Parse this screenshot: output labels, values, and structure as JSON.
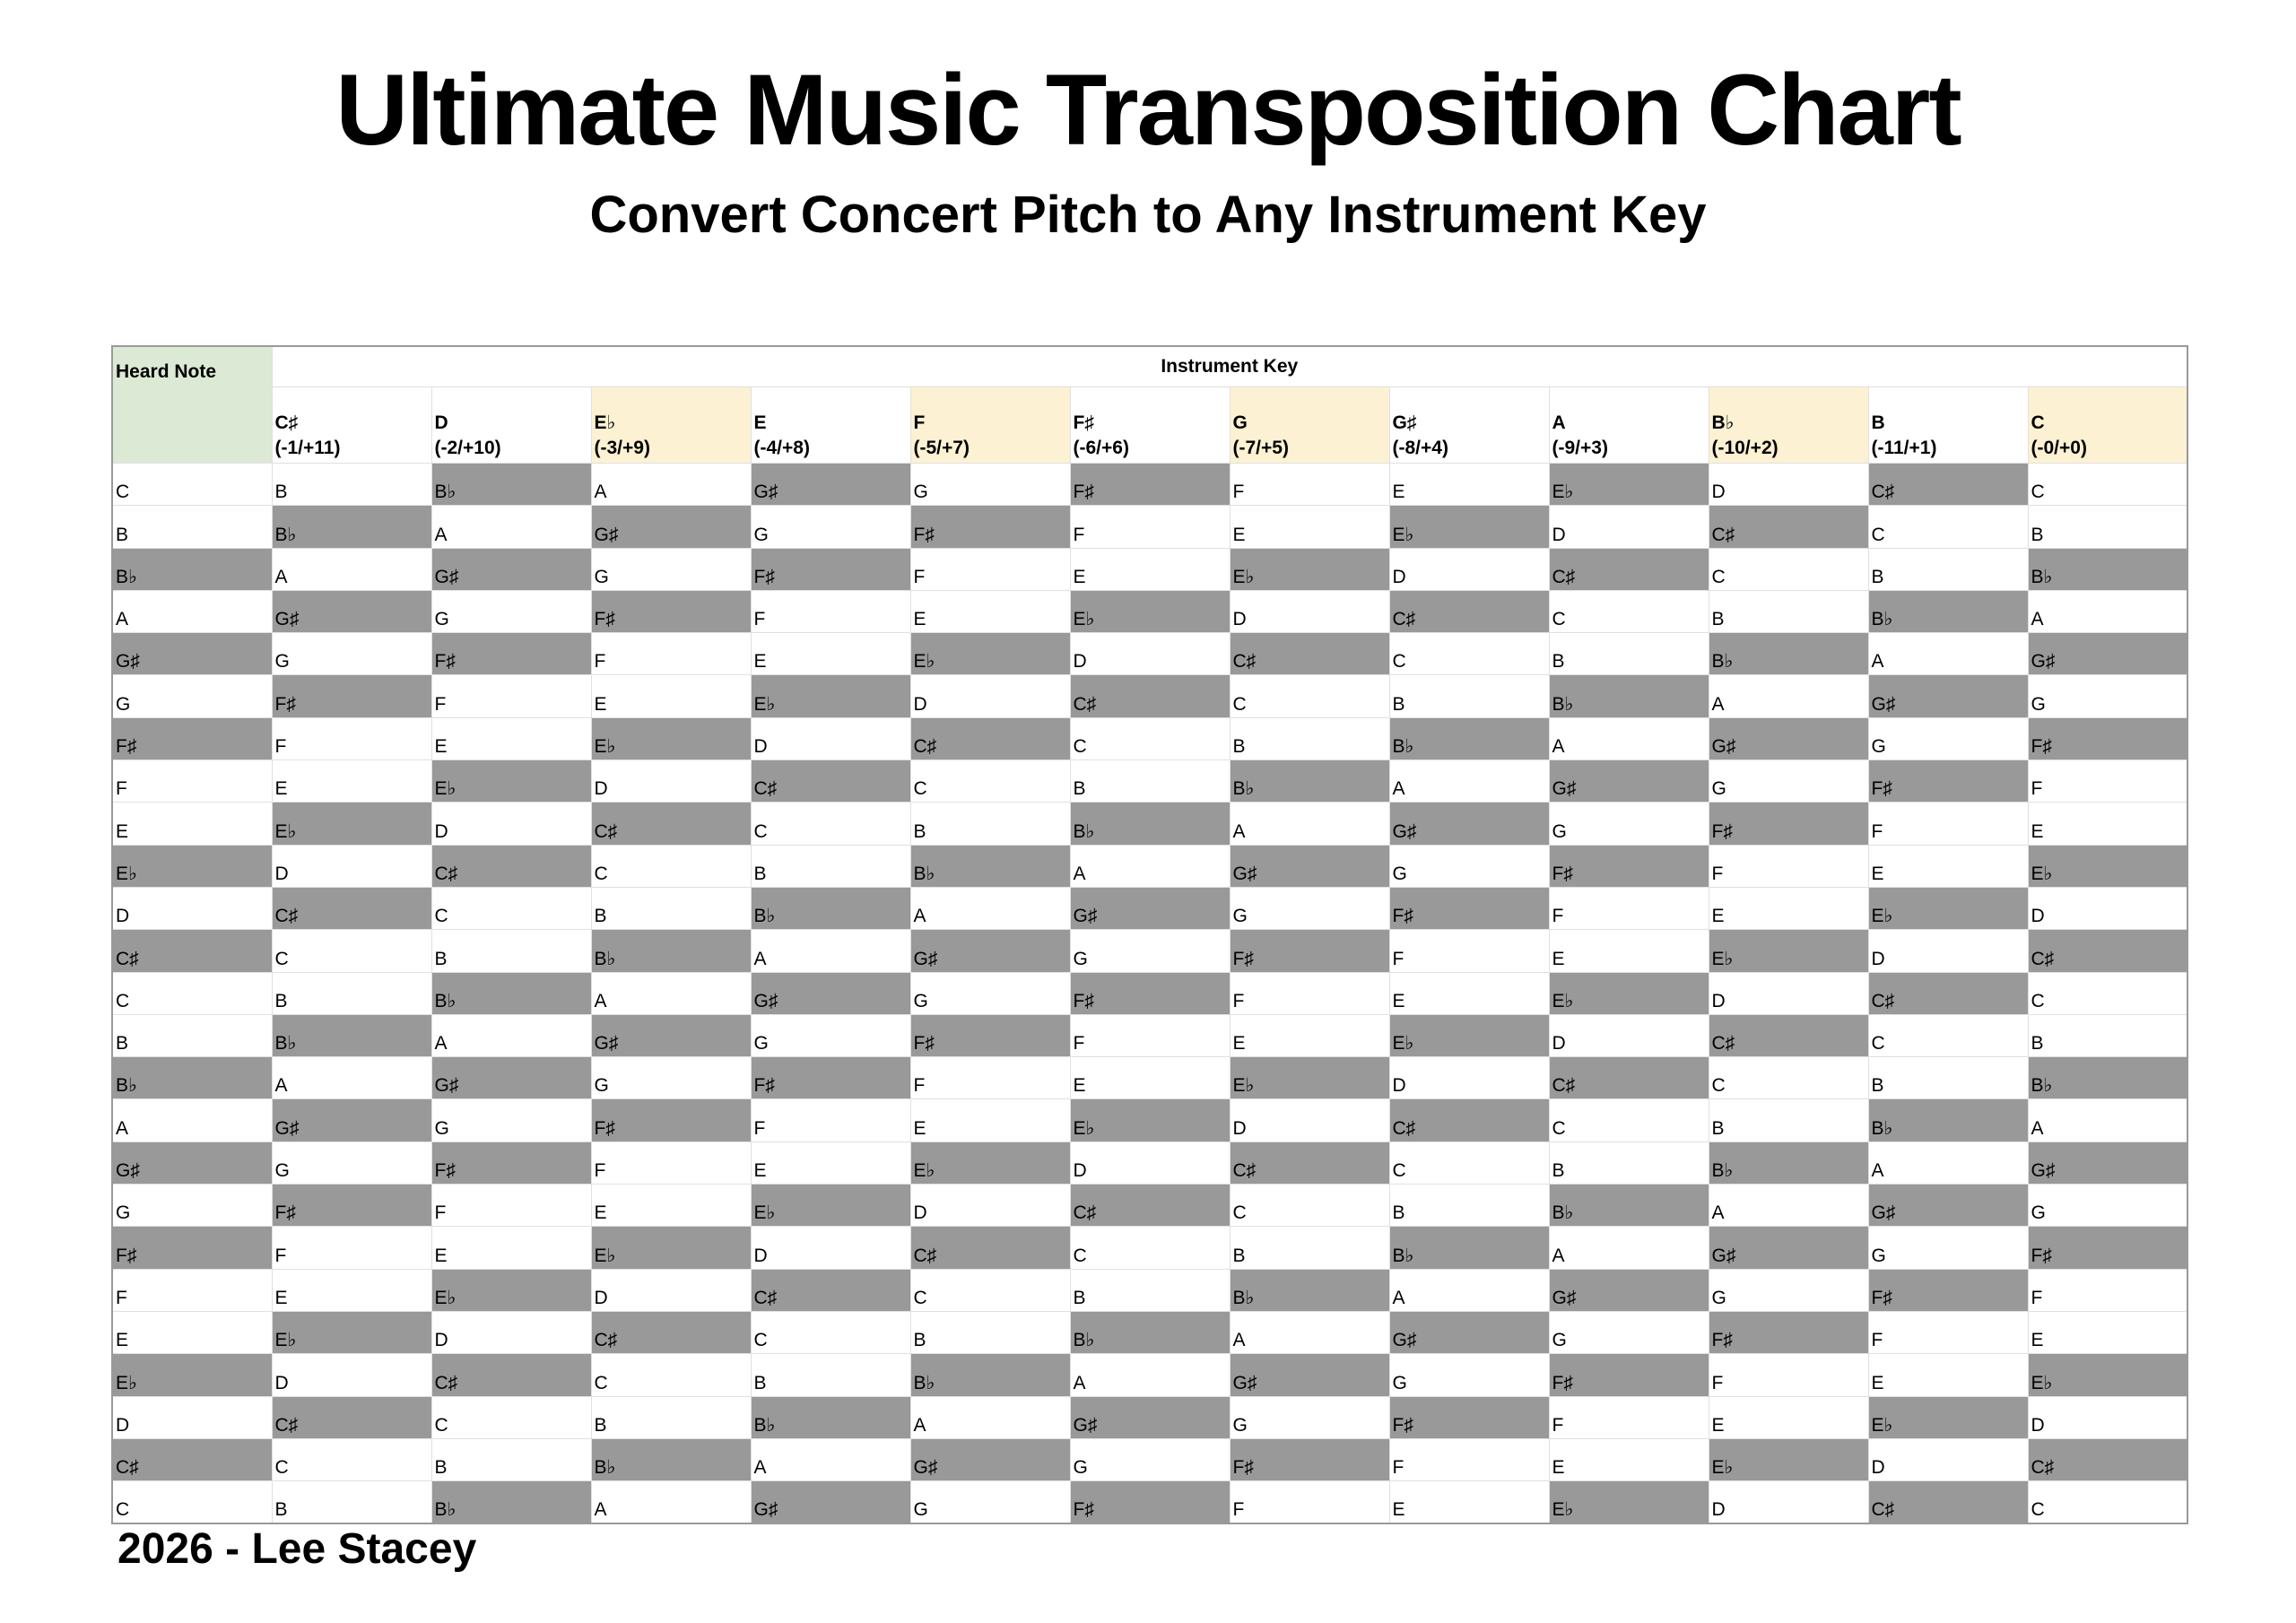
{
  "header": {
    "title": "Ultimate Music Transposition Chart",
    "subtitle": "Convert Concert Pitch to Any Instrument Key"
  },
  "table": {
    "corner": "Heard Note",
    "group": "Instrument Key",
    "columns": [
      {
        "key": "C♯",
        "interval": "(-1/+11)"
      },
      {
        "key": "D",
        "interval": "(-2/+10)"
      },
      {
        "key": "E♭",
        "interval": "(-3/+9)"
      },
      {
        "key": "E",
        "interval": "(-4/+8)"
      },
      {
        "key": "F",
        "interval": "(-5/+7)"
      },
      {
        "key": "F♯",
        "interval": "(-6/+6)"
      },
      {
        "key": "G",
        "interval": "(-7/+5)"
      },
      {
        "key": "G♯",
        "interval": "(-8/+4)"
      },
      {
        "key": "A",
        "interval": "(-9/+3)"
      },
      {
        "key": "B♭",
        "interval": "(-10/+2)"
      },
      {
        "key": "B",
        "interval": "(-11/+1)"
      },
      {
        "key": "C",
        "interval": "(-0/+0)"
      }
    ],
    "rows": [
      [
        "C",
        "B",
        "B♭",
        "A",
        "G♯",
        "G",
        "F♯",
        "F",
        "E",
        "E♭",
        "D",
        "C♯",
        "C"
      ],
      [
        "B",
        "B♭",
        "A",
        "G♯",
        "G",
        "F♯",
        "F",
        "E",
        "E♭",
        "D",
        "C♯",
        "C",
        "B"
      ],
      [
        "B♭",
        "A",
        "G♯",
        "G",
        "F♯",
        "F",
        "E",
        "E♭",
        "D",
        "C♯",
        "C",
        "B",
        "B♭"
      ],
      [
        "A",
        "G♯",
        "G",
        "F♯",
        "F",
        "E",
        "E♭",
        "D",
        "C♯",
        "C",
        "B",
        "B♭",
        "A"
      ],
      [
        "G♯",
        "G",
        "F♯",
        "F",
        "E",
        "E♭",
        "D",
        "C♯",
        "C",
        "B",
        "B♭",
        "A",
        "G♯"
      ],
      [
        "G",
        "F♯",
        "F",
        "E",
        "E♭",
        "D",
        "C♯",
        "C",
        "B",
        "B♭",
        "A",
        "G♯",
        "G"
      ],
      [
        "F♯",
        "F",
        "E",
        "E♭",
        "D",
        "C♯",
        "C",
        "B",
        "B♭",
        "A",
        "G♯",
        "G",
        "F♯"
      ],
      [
        "F",
        "E",
        "E♭",
        "D",
        "C♯",
        "C",
        "B",
        "B♭",
        "A",
        "G♯",
        "G",
        "F♯",
        "F"
      ],
      [
        "E",
        "E♭",
        "D",
        "C♯",
        "C",
        "B",
        "B♭",
        "A",
        "G♯",
        "G",
        "F♯",
        "F",
        "E"
      ],
      [
        "E♭",
        "D",
        "C♯",
        "C",
        "B",
        "B♭",
        "A",
        "G♯",
        "G",
        "F♯",
        "F",
        "E",
        "E♭"
      ],
      [
        "D",
        "C♯",
        "C",
        "B",
        "B♭",
        "A",
        "G♯",
        "G",
        "F♯",
        "F",
        "E",
        "E♭",
        "D"
      ],
      [
        "C♯",
        "C",
        "B",
        "B♭",
        "A",
        "G♯",
        "G",
        "F♯",
        "F",
        "E",
        "E♭",
        "D",
        "C♯"
      ],
      [
        "C",
        "B",
        "B♭",
        "A",
        "G♯",
        "G",
        "F♯",
        "F",
        "E",
        "E♭",
        "D",
        "C♯",
        "C"
      ],
      [
        "B",
        "B♭",
        "A",
        "G♯",
        "G",
        "F♯",
        "F",
        "E",
        "E♭",
        "D",
        "C♯",
        "C",
        "B"
      ],
      [
        "B♭",
        "A",
        "G♯",
        "G",
        "F♯",
        "F",
        "E",
        "E♭",
        "D",
        "C♯",
        "C",
        "B",
        "B♭"
      ],
      [
        "A",
        "G♯",
        "G",
        "F♯",
        "F",
        "E",
        "E♭",
        "D",
        "C♯",
        "C",
        "B",
        "B♭",
        "A"
      ],
      [
        "G♯",
        "G",
        "F♯",
        "F",
        "E",
        "E♭",
        "D",
        "C♯",
        "C",
        "B",
        "B♭",
        "A",
        "G♯"
      ],
      [
        "G",
        "F♯",
        "F",
        "E",
        "E♭",
        "D",
        "C♯",
        "C",
        "B",
        "B♭",
        "A",
        "G♯",
        "G"
      ],
      [
        "F♯",
        "F",
        "E",
        "E♭",
        "D",
        "C♯",
        "C",
        "B",
        "B♭",
        "A",
        "G♯",
        "G",
        "F♯"
      ],
      [
        "F",
        "E",
        "E♭",
        "D",
        "C♯",
        "C",
        "B",
        "B♭",
        "A",
        "G♯",
        "G",
        "F♯",
        "F"
      ],
      [
        "E",
        "E♭",
        "D",
        "C♯",
        "C",
        "B",
        "B♭",
        "A",
        "G♯",
        "G",
        "F♯",
        "F",
        "E"
      ],
      [
        "E♭",
        "D",
        "C♯",
        "C",
        "B",
        "B♭",
        "A",
        "G♯",
        "G",
        "F♯",
        "F",
        "E",
        "E♭"
      ],
      [
        "D",
        "C♯",
        "C",
        "B",
        "B♭",
        "A",
        "G♯",
        "G",
        "F♯",
        "F",
        "E",
        "E♭",
        "D"
      ],
      [
        "C♯",
        "C",
        "B",
        "B♭",
        "A",
        "G♯",
        "G",
        "F♯",
        "F",
        "E",
        "E♭",
        "D",
        "C♯"
      ],
      [
        "C",
        "B",
        "B♭",
        "A",
        "G♯",
        "G",
        "F♯",
        "F",
        "E",
        "E♭",
        "D",
        "C♯",
        "C"
      ]
    ]
  },
  "footer": {
    "text": "2026 - Lee Stacey"
  }
}
